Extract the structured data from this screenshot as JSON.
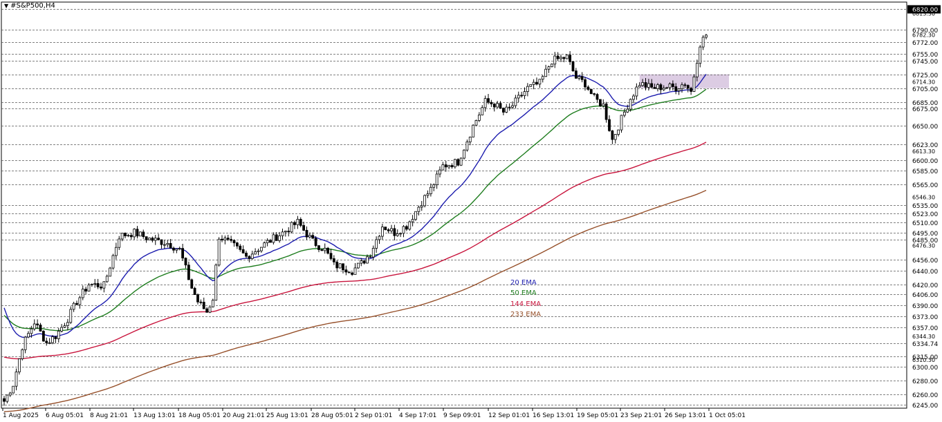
{
  "chart_data": {
    "type": "candlestick",
    "symbol": "#S&P500,H4",
    "ylim": [
      6240,
      6830
    ],
    "price_levels": [
      6820.0,
      6790.0,
      6772.0,
      6755.0,
      6745.0,
      6725.0,
      6705.0,
      6685.0,
      6675.0,
      6650.0,
      6623.0,
      6600.0,
      6585.0,
      6565.0,
      6535.0,
      6523.0,
      6510.0,
      6495.0,
      6485.0,
      6456.0,
      6440.0,
      6420.0,
      6406.0,
      6390.0,
      6373.0,
      6357.0,
      6334.74,
      6315.0,
      6300.0,
      6280.0,
      6260.0,
      6245.0
    ],
    "highlighted_level": "6820.00",
    "extra_labels": [
      "6813.30",
      "6782.30",
      "6714.30",
      "6613.30",
      "6546.30",
      "6476.30",
      "6344.30",
      "6310.30"
    ],
    "x_labels": [
      "1 Aug 2025",
      "6 Aug 05:01",
      "8 Aug 21:01",
      "13 Aug 13:01",
      "18 Aug 05:01",
      "20 Aug 21:01",
      "25 Aug 13:01",
      "28 Aug 05:01",
      "2 Sep 01:01",
      "4 Sep 17:01",
      "9 Sep 09:01",
      "12 Sep 01:01",
      "16 Sep 13:01",
      "19 Sep 05:01",
      "23 Sep 21:01",
      "26 Sep 13:01",
      "1 Oct 05:01"
    ],
    "legend": [
      {
        "label": "20 EMA",
        "color": "#1c1cae"
      },
      {
        "label": "50 EMA",
        "color": "#1e7d1e"
      },
      {
        "label": "144 EMA",
        "color": "#c8143c"
      },
      {
        "label": "233 EMA",
        "color": "#96502a"
      }
    ],
    "anchors": [
      {
        "i": 0,
        "p": 6250
      },
      {
        "i": 3,
        "p": 6275
      },
      {
        "i": 6,
        "p": 6330
      },
      {
        "i": 10,
        "p": 6365
      },
      {
        "i": 14,
        "p": 6335
      },
      {
        "i": 17,
        "p": 6345
      },
      {
        "i": 21,
        "p": 6370
      },
      {
        "i": 24,
        "p": 6395
      },
      {
        "i": 28,
        "p": 6420
      },
      {
        "i": 33,
        "p": 6418
      },
      {
        "i": 38,
        "p": 6490
      },
      {
        "i": 43,
        "p": 6495
      },
      {
        "i": 48,
        "p": 6486
      },
      {
        "i": 54,
        "p": 6480
      },
      {
        "i": 58,
        "p": 6470
      },
      {
        "i": 62,
        "p": 6415
      },
      {
        "i": 64,
        "p": 6395
      },
      {
        "i": 67,
        "p": 6380
      },
      {
        "i": 69,
        "p": 6400
      },
      {
        "i": 71,
        "p": 6490
      },
      {
        "i": 76,
        "p": 6475
      },
      {
        "i": 80,
        "p": 6460
      },
      {
        "i": 86,
        "p": 6478
      },
      {
        "i": 92,
        "p": 6495
      },
      {
        "i": 97,
        "p": 6510
      },
      {
        "i": 102,
        "p": 6482
      },
      {
        "i": 106,
        "p": 6470
      },
      {
        "i": 109,
        "p": 6448
      },
      {
        "i": 112,
        "p": 6445
      },
      {
        "i": 115,
        "p": 6440
      },
      {
        "i": 118,
        "p": 6450
      },
      {
        "i": 121,
        "p": 6465
      },
      {
        "i": 125,
        "p": 6505
      },
      {
        "i": 129,
        "p": 6495
      },
      {
        "i": 133,
        "p": 6505
      },
      {
        "i": 138,
        "p": 6540
      },
      {
        "i": 141,
        "p": 6558
      },
      {
        "i": 145,
        "p": 6592
      },
      {
        "i": 150,
        "p": 6598
      },
      {
        "i": 155,
        "p": 6650
      },
      {
        "i": 159,
        "p": 6685
      },
      {
        "i": 162,
        "p": 6682
      },
      {
        "i": 165,
        "p": 6670
      },
      {
        "i": 167,
        "p": 6675
      },
      {
        "i": 170,
        "p": 6690
      },
      {
        "i": 173,
        "p": 6705
      },
      {
        "i": 177,
        "p": 6712
      },
      {
        "i": 181,
        "p": 6745
      },
      {
        "i": 186,
        "p": 6750
      },
      {
        "i": 189,
        "p": 6720
      },
      {
        "i": 192,
        "p": 6712
      },
      {
        "i": 195,
        "p": 6690
      },
      {
        "i": 198,
        "p": 6680
      },
      {
        "i": 201,
        "p": 6630
      },
      {
        "i": 204,
        "p": 6660
      },
      {
        "i": 207,
        "p": 6690
      },
      {
        "i": 210,
        "p": 6712
      },
      {
        "i": 214,
        "p": 6705
      },
      {
        "i": 218,
        "p": 6707
      },
      {
        "i": 222,
        "p": 6706
      },
      {
        "i": 225,
        "p": 6712
      },
      {
        "i": 227,
        "p": 6700
      },
      {
        "i": 230,
        "p": 6770
      },
      {
        "i": 232,
        "p": 6782
      }
    ],
    "highlight_zone": {
      "x_from_index": 210,
      "x_to_index": 240,
      "p_low": 6705,
      "p_high": 6725
    }
  }
}
